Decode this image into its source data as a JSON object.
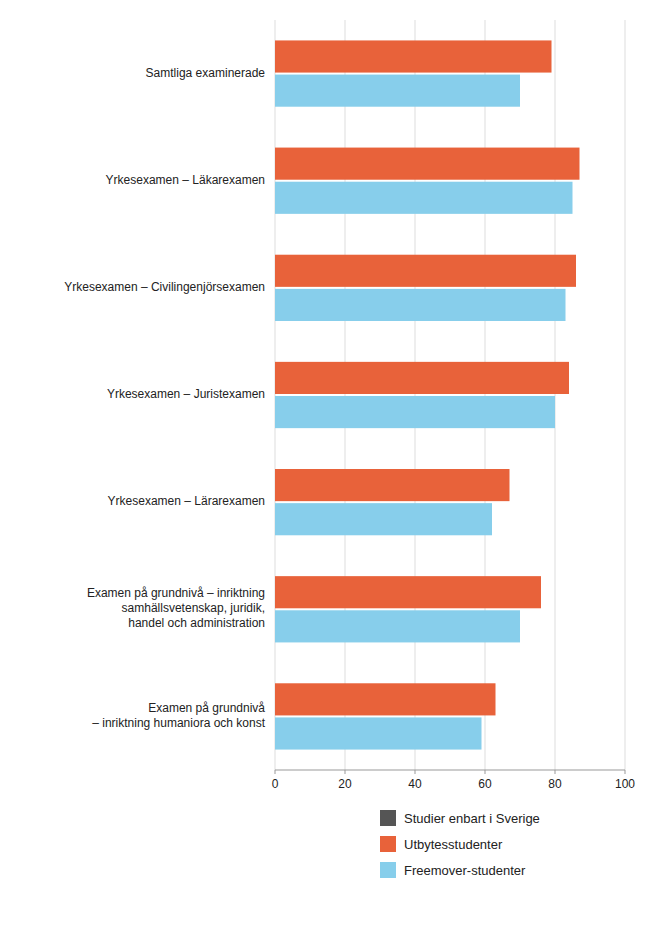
{
  "chart_data": {
    "type": "bar",
    "orientation": "horizontal",
    "categories": [
      "Examen på grundnivå\n– inriktning humaniora och konst",
      "Examen på grundnivå – inriktning\nsamhällsvetenskap, juridik,\nhandel och administration",
      "Yrkesexamen – Lärarexamen",
      "Yrkesexamen – Juristexamen",
      "Yrkesexamen – Civilingenjörsexamen",
      "Yrkesexamen – Läkarexamen",
      "Samtliga examinerade"
    ],
    "series": [
      {
        "name": "Studier enbart i Sverige",
        "color": "#555555",
        "values": [
          null,
          null,
          null,
          null,
          null,
          null,
          null
        ]
      },
      {
        "name": "Utbytesstudenter",
        "color": "#E8623A",
        "values": [
          63,
          76,
          67,
          84,
          86,
          87,
          79
        ]
      },
      {
        "name": "Freemover-studenter",
        "color": "#87CEEB",
        "values": [
          59,
          70,
          62,
          80,
          83,
          85,
          70
        ]
      }
    ],
    "xlim": [
      0,
      100
    ],
    "xticks": [
      0,
      20,
      40,
      60,
      80,
      100
    ],
    "grid": true,
    "legend": "bottom"
  }
}
